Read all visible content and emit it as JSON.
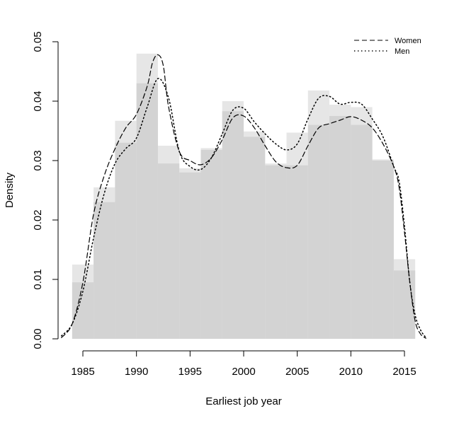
{
  "chart_data": {
    "type": "histogram-density",
    "xlabel": "Earliest job year",
    "ylabel": "Density",
    "xlim": [
      1983,
      2018
    ],
    "ylim": [
      0,
      0.05
    ],
    "x_ticks": [
      1985,
      1990,
      1995,
      2000,
      2005,
      2010,
      2015
    ],
    "x_tick_labels": [
      "1985",
      "1990",
      "1995",
      "2000",
      "2005",
      "2010",
      "2015"
    ],
    "y_ticks": [
      0,
      0.01,
      0.02,
      0.03,
      0.04,
      0.05
    ],
    "y_tick_labels": [
      "0.00",
      "0.01",
      "0.02",
      "0.03",
      "0.04",
      "0.05"
    ],
    "bin_edges": [
      1984,
      1986,
      1988,
      1990,
      1992,
      1994,
      1996,
      1998,
      2000,
      2002,
      2004,
      2006,
      2008,
      2010,
      2012,
      2014,
      2016
    ],
    "histograms": [
      {
        "name": "Women",
        "color": "#e6e6e6",
        "values": [
          0.0125,
          0.0255,
          0.0367,
          0.048,
          0.0325,
          0.0287,
          0.0321,
          0.04,
          0.0349,
          0.0295,
          0.0347,
          0.0418,
          0.0394,
          0.039,
          0.0302,
          0.0134
        ]
      },
      {
        "name": "Men",
        "color": "#d3d3d3",
        "values": [
          0.0095,
          0.023,
          0.033,
          0.043,
          0.0295,
          0.028,
          0.0318,
          0.0383,
          0.034,
          0.0292,
          0.0292,
          0.036,
          0.0375,
          0.036,
          0.03,
          0.0115
        ]
      }
    ],
    "series": [
      {
        "name": "Women",
        "dash": "dashed",
        "color": "#000000",
        "x": [
          1983,
          1984,
          1985,
          1986,
          1987,
          1988,
          1989,
          1990,
          1991,
          1991.5,
          1992,
          1992.5,
          1993,
          1994,
          1995,
          1996,
          1997,
          1998,
          1999,
          2000,
          2001,
          2002,
          2003,
          2004,
          2005,
          2006,
          2007,
          2008,
          2009,
          2010,
          2011,
          2012,
          2013,
          2014,
          2014.5,
          2015,
          2015.5,
          2016,
          2016.5,
          2017
        ],
        "y": [
          0.0002,
          0.0025,
          0.0095,
          0.021,
          0.0275,
          0.032,
          0.0355,
          0.0378,
          0.0425,
          0.0465,
          0.0478,
          0.046,
          0.039,
          0.0315,
          0.03,
          0.0293,
          0.0305,
          0.0335,
          0.0372,
          0.0375,
          0.0355,
          0.0325,
          0.0298,
          0.0288,
          0.0292,
          0.0325,
          0.0355,
          0.0362,
          0.0368,
          0.0374,
          0.0368,
          0.0355,
          0.0328,
          0.029,
          0.0255,
          0.018,
          0.0095,
          0.003,
          0.0008,
          0.0001
        ]
      },
      {
        "name": "Men",
        "dash": "dotted",
        "color": "#000000",
        "x": [
          1983,
          1984,
          1985,
          1986,
          1987,
          1988,
          1989,
          1990,
          1991,
          1992,
          1993,
          1994,
          1995,
          1996,
          1997,
          1998,
          1999,
          2000,
          2001,
          2002,
          2003,
          2004,
          2005,
          2006,
          2007,
          2008,
          2009,
          2010,
          2011,
          2012,
          2013,
          2014,
          2014.5,
          2015,
          2015.5,
          2016,
          2016.5,
          2017
        ],
        "y": [
          0.0005,
          0.0025,
          0.008,
          0.017,
          0.0245,
          0.0295,
          0.032,
          0.0338,
          0.039,
          0.0438,
          0.0405,
          0.0315,
          0.029,
          0.0285,
          0.0305,
          0.0345,
          0.0385,
          0.0388,
          0.0365,
          0.0345,
          0.0328,
          0.0318,
          0.0328,
          0.037,
          0.0405,
          0.0408,
          0.0395,
          0.0398,
          0.0395,
          0.037,
          0.034,
          0.029,
          0.0265,
          0.019,
          0.0095,
          0.004,
          0.0015,
          0.0002
        ]
      }
    ],
    "legend": {
      "placement": "top-right",
      "entries": [
        {
          "label": "Women",
          "dash": "dashed"
        },
        {
          "label": "Men",
          "dash": "dotted"
        }
      ]
    },
    "grid": false
  }
}
